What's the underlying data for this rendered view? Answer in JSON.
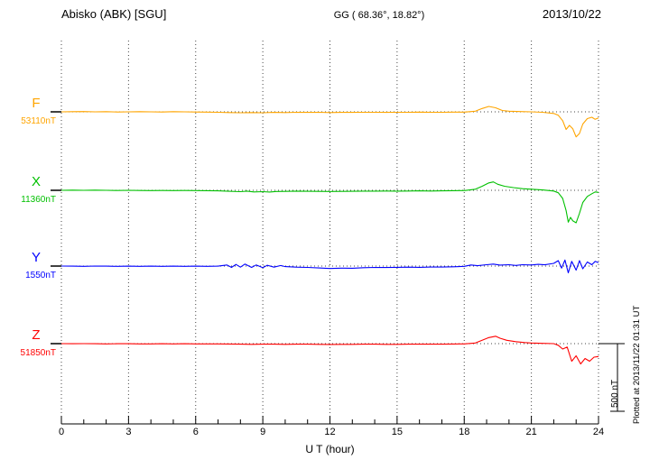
{
  "header": {
    "station": "Abisko (ABK)  [SGU]",
    "coords": "GG ( 68.36°,  18.82°)",
    "date": "2013/10/22"
  },
  "axis": {
    "xlabel": "U T (hour)",
    "ticks": [
      0,
      3,
      6,
      9,
      12,
      15,
      18,
      21,
      24
    ],
    "hours_total": 24
  },
  "scale_bar": {
    "label": "500 nT",
    "nT": 500
  },
  "footer_note": "Plotted at 2013/11/22 01:31 UT",
  "chart_data": {
    "type": "line",
    "title": "Abisko (ABK) [SGU] magnetogram 2013/10/22",
    "xlabel": "U T (hour)",
    "x_range": [
      0,
      24
    ],
    "x_ticks": [
      0,
      3,
      6,
      9,
      12,
      15,
      18,
      21,
      24
    ],
    "grid": "vertical-dotted-every-3h",
    "legend_position": "left-channel-labels",
    "scale_division_nT": 500,
    "series": [
      {
        "name": "F",
        "baseline_label": "53110nT",
        "baseline_nT": 53110,
        "color": "#ffa500",
        "points": [
          [
            0,
            0
          ],
          [
            0.5,
            1
          ],
          [
            1,
            2
          ],
          [
            1.5,
            0
          ],
          [
            2,
            1
          ],
          [
            2.5,
            -1
          ],
          [
            3,
            0
          ],
          [
            3.5,
            1
          ],
          [
            4,
            0
          ],
          [
            4.5,
            -1
          ],
          [
            5,
            1
          ],
          [
            5.5,
            0
          ],
          [
            6,
            -1
          ],
          [
            6.5,
            -2
          ],
          [
            7,
            -3
          ],
          [
            7.5,
            -5
          ],
          [
            8,
            -7
          ],
          [
            8.5,
            -5
          ],
          [
            9,
            -7
          ],
          [
            9.5,
            -4
          ],
          [
            10,
            -5
          ],
          [
            10.5,
            -3
          ],
          [
            11,
            -4
          ],
          [
            11.5,
            -3
          ],
          [
            12,
            -5
          ],
          [
            12.5,
            -4
          ],
          [
            13,
            -4
          ],
          [
            13.5,
            -3
          ],
          [
            14,
            -3
          ],
          [
            14.5,
            -4
          ],
          [
            15,
            -3
          ],
          [
            15.5,
            -3
          ],
          [
            16,
            -2
          ],
          [
            16.5,
            -3
          ],
          [
            17,
            -3
          ],
          [
            17.5,
            -2
          ],
          [
            18,
            -2
          ],
          [
            18.5,
            5
          ],
          [
            18.8,
            25
          ],
          [
            19.1,
            40
          ],
          [
            19.4,
            30
          ],
          [
            19.7,
            10
          ],
          [
            20,
            5
          ],
          [
            20.5,
            2
          ],
          [
            21,
            0
          ],
          [
            21.5,
            -3
          ],
          [
            22,
            -12
          ],
          [
            22.2,
            -25
          ],
          [
            22.4,
            -65
          ],
          [
            22.55,
            -130
          ],
          [
            22.7,
            -100
          ],
          [
            22.85,
            -125
          ],
          [
            23,
            -185
          ],
          [
            23.15,
            -160
          ],
          [
            23.3,
            -90
          ],
          [
            23.5,
            -50
          ],
          [
            23.7,
            -40
          ],
          [
            23.85,
            -55
          ],
          [
            24,
            -45
          ]
        ]
      },
      {
        "name": "X",
        "baseline_label": "11360nT",
        "baseline_nT": 11360,
        "color": "#00c000",
        "points": [
          [
            0,
            0
          ],
          [
            0.5,
            1
          ],
          [
            1,
            0
          ],
          [
            1.5,
            1
          ],
          [
            2,
            0
          ],
          [
            2.5,
            -1
          ],
          [
            3,
            0
          ],
          [
            3.5,
            -1
          ],
          [
            4,
            -2
          ],
          [
            4.5,
            -1
          ],
          [
            5,
            -2
          ],
          [
            5.5,
            -1
          ],
          [
            6,
            -2
          ],
          [
            6.5,
            -3
          ],
          [
            7,
            -4
          ],
          [
            7.5,
            -7
          ],
          [
            8,
            -10
          ],
          [
            8.3,
            -6
          ],
          [
            8.6,
            -12
          ],
          [
            9,
            -10
          ],
          [
            9.3,
            -13
          ],
          [
            9.6,
            -9
          ],
          [
            10,
            -8
          ],
          [
            10.5,
            -6
          ],
          [
            11,
            -7
          ],
          [
            11.5,
            -8
          ],
          [
            12,
            -9
          ],
          [
            12.5,
            -8
          ],
          [
            13,
            -7
          ],
          [
            13.5,
            -6
          ],
          [
            14,
            -6
          ],
          [
            14.5,
            -5
          ],
          [
            15,
            -6
          ],
          [
            15.5,
            -5
          ],
          [
            16,
            -4
          ],
          [
            16.5,
            -5
          ],
          [
            17,
            -4
          ],
          [
            17.5,
            -3
          ],
          [
            18,
            -2
          ],
          [
            18.5,
            8
          ],
          [
            18.8,
            30
          ],
          [
            19.1,
            55
          ],
          [
            19.3,
            62
          ],
          [
            19.5,
            45
          ],
          [
            19.8,
            30
          ],
          [
            20.2,
            20
          ],
          [
            20.6,
            12
          ],
          [
            21,
            8
          ],
          [
            21.5,
            3
          ],
          [
            22,
            -5
          ],
          [
            22.2,
            -18
          ],
          [
            22.4,
            -60
          ],
          [
            22.55,
            -150
          ],
          [
            22.65,
            -235
          ],
          [
            22.75,
            -200
          ],
          [
            22.85,
            -225
          ],
          [
            23,
            -240
          ],
          [
            23.15,
            -170
          ],
          [
            23.3,
            -90
          ],
          [
            23.5,
            -45
          ],
          [
            23.7,
            -25
          ],
          [
            23.85,
            -12
          ],
          [
            24,
            -15
          ]
        ]
      },
      {
        "name": "Y",
        "baseline_label": "1550nT",
        "baseline_nT": 1550,
        "color": "#0000ff",
        "points": [
          [
            0,
            0
          ],
          [
            0.5,
            -1
          ],
          [
            1,
            -2
          ],
          [
            1.5,
            0
          ],
          [
            2,
            -1
          ],
          [
            2.5,
            -2
          ],
          [
            3,
            -1
          ],
          [
            3.5,
            -2
          ],
          [
            4,
            -1
          ],
          [
            4.5,
            -2
          ],
          [
            5,
            -1
          ],
          [
            5.5,
            -2
          ],
          [
            6,
            -1
          ],
          [
            6.5,
            -2
          ],
          [
            7,
            -1
          ],
          [
            7.4,
            8
          ],
          [
            7.6,
            -10
          ],
          [
            7.8,
            12
          ],
          [
            8,
            -8
          ],
          [
            8.2,
            15
          ],
          [
            8.5,
            -10
          ],
          [
            8.7,
            8
          ],
          [
            9,
            -12
          ],
          [
            9.2,
            6
          ],
          [
            9.5,
            -8
          ],
          [
            9.8,
            4
          ],
          [
            10,
            -4
          ],
          [
            10.5,
            -8
          ],
          [
            11,
            -10
          ],
          [
            11.5,
            -14
          ],
          [
            12,
            -18
          ],
          [
            12.5,
            -15
          ],
          [
            13,
            -16
          ],
          [
            13.5,
            -12
          ],
          [
            14,
            -10
          ],
          [
            14.5,
            -11
          ],
          [
            15,
            -9
          ],
          [
            15.5,
            -8
          ],
          [
            16,
            -9
          ],
          [
            16.5,
            -7
          ],
          [
            17,
            -7
          ],
          [
            17.5,
            -5
          ],
          [
            18,
            -2
          ],
          [
            18.3,
            8
          ],
          [
            18.6,
            3
          ],
          [
            19,
            10
          ],
          [
            19.3,
            15
          ],
          [
            19.6,
            7
          ],
          [
            20,
            10
          ],
          [
            20.3,
            5
          ],
          [
            20.6,
            10
          ],
          [
            21,
            8
          ],
          [
            21.3,
            13
          ],
          [
            21.6,
            9
          ],
          [
            22,
            20
          ],
          [
            22.2,
            40
          ],
          [
            22.35,
            -15
          ],
          [
            22.5,
            45
          ],
          [
            22.65,
            -50
          ],
          [
            22.8,
            35
          ],
          [
            23,
            -30
          ],
          [
            23.15,
            40
          ],
          [
            23.3,
            -20
          ],
          [
            23.5,
            30
          ],
          [
            23.7,
            10
          ],
          [
            23.85,
            35
          ],
          [
            24,
            25
          ]
        ]
      },
      {
        "name": "Z",
        "baseline_label": "51850nT",
        "baseline_nT": 51850,
        "color": "#ff0000",
        "points": [
          [
            0,
            0
          ],
          [
            0.5,
            -1
          ],
          [
            1,
            0
          ],
          [
            1.5,
            -1
          ],
          [
            2,
            -2
          ],
          [
            2.5,
            -1
          ],
          [
            3,
            -1
          ],
          [
            3.5,
            -2
          ],
          [
            4,
            -2
          ],
          [
            4.5,
            -1
          ],
          [
            5,
            -2
          ],
          [
            5.5,
            -1
          ],
          [
            6,
            -2
          ],
          [
            6.5,
            -2
          ],
          [
            7,
            -2
          ],
          [
            7.5,
            -3
          ],
          [
            8,
            -4
          ],
          [
            8.5,
            -5
          ],
          [
            9,
            -4
          ],
          [
            9.5,
            -4
          ],
          [
            10,
            -5
          ],
          [
            10.5,
            -4
          ],
          [
            11,
            -4
          ],
          [
            11.5,
            -5
          ],
          [
            12,
            -6
          ],
          [
            12.5,
            -5
          ],
          [
            13,
            -5
          ],
          [
            13.5,
            -4
          ],
          [
            14,
            -4
          ],
          [
            14.5,
            -5
          ],
          [
            15,
            -5
          ],
          [
            15.5,
            -4
          ],
          [
            16,
            -4
          ],
          [
            16.5,
            -4
          ],
          [
            17,
            -4
          ],
          [
            17.5,
            -3
          ],
          [
            18,
            -2
          ],
          [
            18.5,
            5
          ],
          [
            18.8,
            25
          ],
          [
            19.1,
            45
          ],
          [
            19.4,
            55
          ],
          [
            19.6,
            40
          ],
          [
            19.9,
            25
          ],
          [
            20.3,
            15
          ],
          [
            20.7,
            8
          ],
          [
            21,
            5
          ],
          [
            21.5,
            2
          ],
          [
            22,
            0
          ],
          [
            22.2,
            -12
          ],
          [
            22.4,
            -40
          ],
          [
            22.6,
            -25
          ],
          [
            22.8,
            -130
          ],
          [
            23,
            -90
          ],
          [
            23.2,
            -150
          ],
          [
            23.4,
            -110
          ],
          [
            23.6,
            -130
          ],
          [
            23.8,
            -100
          ],
          [
            24,
            -95
          ]
        ]
      }
    ]
  }
}
